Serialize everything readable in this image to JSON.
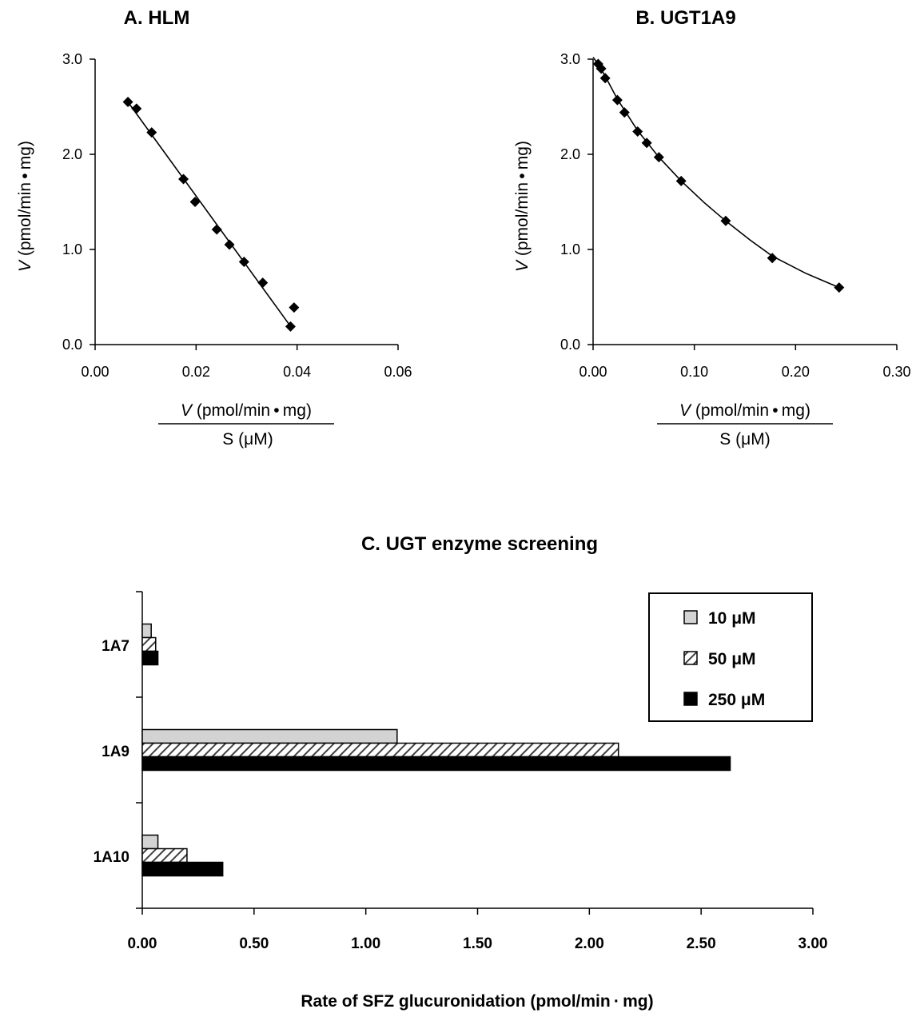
{
  "chart_data": [
    {
      "type": "scatter",
      "title": "A.  HLM",
      "ylabel": {
        "italic": "V",
        "rest": " (pmol/min • mg)"
      },
      "xlabel": {
        "numerator_italic": "V",
        "numerator_rest": "  (pmol/min • mg)",
        "denominator": "S (μM)"
      },
      "xlim": [
        0,
        0.06
      ],
      "ylim": [
        0,
        3.0
      ],
      "xticks": [
        "0.00",
        "0.02",
        "0.04",
        "0.06"
      ],
      "yticks": [
        "0.0",
        "1.0",
        "2.0",
        "3.0"
      ],
      "points": [
        {
          "x": 0.0065,
          "y": 2.55
        },
        {
          "x": 0.0082,
          "y": 2.48
        },
        {
          "x": 0.0112,
          "y": 2.23
        },
        {
          "x": 0.0175,
          "y": 1.74
        },
        {
          "x": 0.0198,
          "y": 1.5
        },
        {
          "x": 0.0241,
          "y": 1.21
        },
        {
          "x": 0.0266,
          "y": 1.05
        },
        {
          "x": 0.0295,
          "y": 0.87
        },
        {
          "x": 0.0332,
          "y": 0.65
        },
        {
          "x": 0.0387,
          "y": 0.19
        },
        {
          "x": 0.0394,
          "y": 0.39
        }
      ],
      "fit_line": [
        {
          "x": 0.0065,
          "y": 2.55
        },
        {
          "x": 0.0386,
          "y": 0.2
        }
      ]
    },
    {
      "type": "scatter",
      "title": "B.  UGT1A9",
      "ylabel": {
        "italic": "V",
        "rest": " (pmol/min • mg)"
      },
      "xlabel": {
        "numerator_italic": "V",
        "numerator_rest": "  (pmol/min • mg)",
        "denominator": "S (μM)"
      },
      "xlim": [
        0,
        0.3
      ],
      "ylim": [
        0,
        3.0
      ],
      "xticks": [
        "0.00",
        "0.10",
        "0.20",
        "0.30"
      ],
      "yticks": [
        "0.0",
        "1.0",
        "2.0",
        "3.0"
      ],
      "points": [
        {
          "x": 0.005,
          "y": 2.95
        },
        {
          "x": 0.008,
          "y": 2.9
        },
        {
          "x": 0.012,
          "y": 2.8
        },
        {
          "x": 0.024,
          "y": 2.57
        },
        {
          "x": 0.031,
          "y": 2.44
        },
        {
          "x": 0.044,
          "y": 2.24
        },
        {
          "x": 0.053,
          "y": 2.12
        },
        {
          "x": 0.065,
          "y": 1.97
        },
        {
          "x": 0.087,
          "y": 1.72
        },
        {
          "x": 0.131,
          "y": 1.3
        },
        {
          "x": 0.177,
          "y": 0.91
        },
        {
          "x": 0.243,
          "y": 0.6
        }
      ],
      "fit_curve": [
        {
          "x": 0.0,
          "y": 3.02
        },
        {
          "x": 0.005,
          "y": 2.95
        },
        {
          "x": 0.012,
          "y": 2.82
        },
        {
          "x": 0.024,
          "y": 2.58
        },
        {
          "x": 0.044,
          "y": 2.25
        },
        {
          "x": 0.065,
          "y": 1.97
        },
        {
          "x": 0.087,
          "y": 1.72
        },
        {
          "x": 0.11,
          "y": 1.49
        },
        {
          "x": 0.131,
          "y": 1.3
        },
        {
          "x": 0.155,
          "y": 1.1
        },
        {
          "x": 0.177,
          "y": 0.93
        },
        {
          "x": 0.21,
          "y": 0.75
        },
        {
          "x": 0.243,
          "y": 0.6
        }
      ]
    },
    {
      "type": "bar",
      "orientation": "horizontal",
      "title": "C.  UGT enzyme screening",
      "xlabel": "Rate of SFZ glucuronidation (pmol/min · mg)",
      "xlim": [
        0,
        3.0
      ],
      "xticks": [
        "0.00",
        "0.50",
        "1.00",
        "1.50",
        "2.00",
        "2.50",
        "3.00"
      ],
      "categories": [
        "1A7",
        "1A9",
        "1A10"
      ],
      "series": [
        {
          "name": "10  μM",
          "fill": "#d3d3d3",
          "pattern": "solid",
          "values": [
            0.04,
            1.14,
            0.07
          ]
        },
        {
          "name": "50  μM",
          "fill": "#ffffff",
          "pattern": "hatch",
          "values": [
            0.06,
            2.13,
            0.2
          ]
        },
        {
          "name": "250  μM",
          "fill": "#000000",
          "pattern": "solid",
          "values": [
            0.07,
            2.63,
            0.36
          ]
        }
      ],
      "legend_position": "top-right"
    }
  ]
}
